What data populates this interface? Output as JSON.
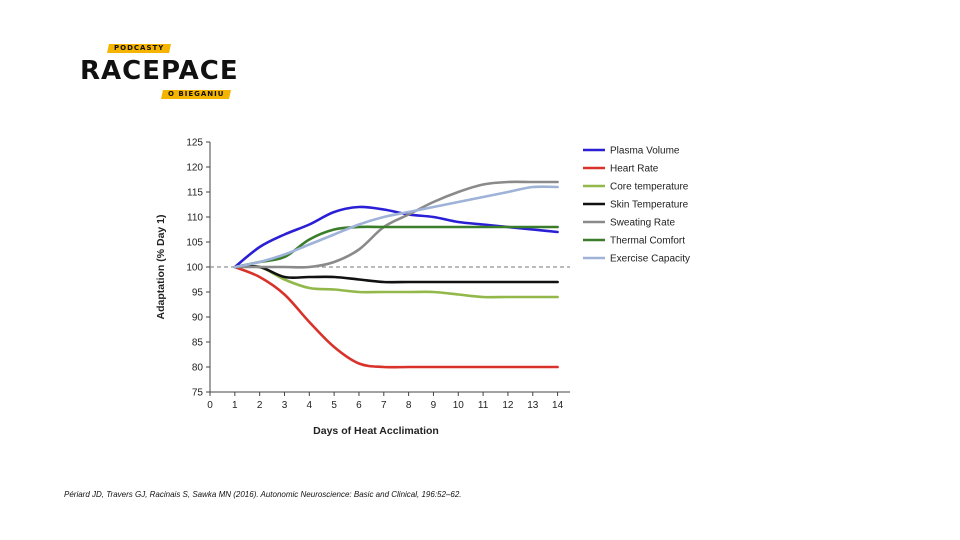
{
  "logo": {
    "top_tag": "PODCASTY",
    "wordmark": "RACEPACE",
    "bottom_tag": "O BIEGANIU",
    "accent_color": "#f5b400"
  },
  "citation": "Périard JD, Travers GJ, Racinais S, Sawka MN (2016). Autonomic Neuroscience: Basic and Clinical, 196:52–62.",
  "chart_data": {
    "type": "line",
    "title": "",
    "xlabel": "Days of Heat Acclimation",
    "ylabel": "Adaptation (% Day 1)",
    "xlim": [
      0,
      14.5
    ],
    "ylim": [
      75,
      125
    ],
    "xticks": [
      0,
      1,
      2,
      3,
      4,
      5,
      6,
      7,
      8,
      9,
      10,
      11,
      12,
      13,
      14
    ],
    "yticks": [
      75,
      80,
      85,
      90,
      95,
      100,
      105,
      110,
      115,
      120,
      125
    ],
    "reference_line": 100,
    "grid": false,
    "legend_position": "right",
    "x": [
      1,
      2,
      3,
      4,
      5,
      6,
      7,
      8,
      9,
      10,
      11,
      12,
      13,
      14
    ],
    "series": [
      {
        "name": "Plasma Volume",
        "color": "#2b1fd6",
        "values": [
          100,
          104,
          106.5,
          108.5,
          111,
          112,
          111.5,
          110.5,
          110,
          109,
          108.5,
          108,
          107.5,
          107
        ]
      },
      {
        "name": "Heart Rate",
        "color": "#d8322a",
        "values": [
          100,
          98,
          94.5,
          89,
          84,
          80.7,
          80,
          80,
          80,
          80,
          80,
          80,
          80,
          80
        ]
      },
      {
        "name": "Core temperature",
        "color": "#93b84a",
        "values": [
          100,
          100,
          97.5,
          95.8,
          95.5,
          95,
          95,
          95,
          95,
          94.5,
          94,
          94,
          94,
          94
        ]
      },
      {
        "name": "Skin Temperature",
        "color": "#111111",
        "values": [
          100,
          100,
          98,
          98,
          98,
          97.5,
          97,
          97,
          97,
          97,
          97,
          97,
          97,
          97
        ]
      },
      {
        "name": "Sweating Rate",
        "color": "#8a8a8a",
        "values": [
          100,
          100,
          100,
          100,
          101,
          103.5,
          108,
          110.5,
          113,
          115,
          116.5,
          117,
          117,
          117
        ]
      },
      {
        "name": "Thermal Comfort",
        "color": "#3a7d2a",
        "values": [
          100,
          101,
          102,
          105.5,
          107.5,
          108,
          108,
          108,
          108,
          108,
          108,
          108,
          108,
          108
        ]
      },
      {
        "name": "Exercise Capacity",
        "color": "#9fb2d8",
        "values": [
          100,
          101,
          102.5,
          104.5,
          106.5,
          108.5,
          110,
          111,
          112,
          113,
          114,
          115,
          116,
          116
        ]
      }
    ]
  }
}
